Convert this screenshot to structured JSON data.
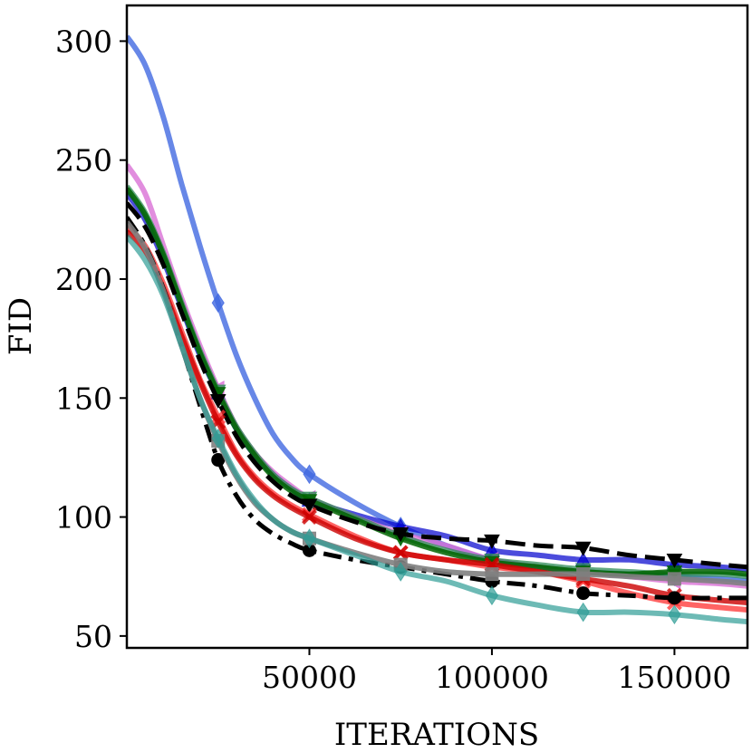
{
  "chart_data": {
    "type": "line",
    "xlabel": "ITERATIONS",
    "ylabel": "FID",
    "xlim": [
      0,
      170000
    ],
    "ylim": [
      45,
      315
    ],
    "x_ticks": [
      50000,
      100000,
      150000
    ],
    "x_tick_labels": [
      "50000",
      "100000",
      "150000"
    ],
    "y_ticks": [
      50,
      100,
      150,
      200,
      250,
      300
    ],
    "y_tick_labels": [
      "50",
      "100",
      "150",
      "200",
      "250",
      "300"
    ],
    "grid": false,
    "legend": "none",
    "x": [
      0,
      5000,
      10000,
      15000,
      20000,
      25000,
      30000,
      35000,
      40000,
      45000,
      50000,
      62500,
      75000,
      87500,
      100000,
      112500,
      125000,
      137500,
      150000,
      162500,
      170000
    ],
    "marker_x": [
      25000,
      50000,
      75000,
      100000,
      125000,
      150000
    ],
    "series": [
      {
        "color": "#4169e1",
        "marker": "diamond",
        "style": "solid",
        "alpha": 0.8,
        "values": [
          302,
          290,
          268,
          240,
          214,
          190,
          168,
          150,
          135,
          125,
          118,
          106,
          96,
          88,
          82,
          79,
          77,
          76,
          75,
          74,
          73
        ]
      },
      {
        "color": "#0000cd",
        "marker": "triangle-up",
        "style": "solid",
        "alpha": 0.7,
        "values": [
          236,
          225,
          208,
          188,
          168,
          152,
          137,
          126,
          118,
          112,
          107,
          101,
          96,
          92,
          86,
          84,
          82,
          82,
          80,
          79,
          78
        ]
      },
      {
        "color": "#da70d6",
        "marker": "triangle-left",
        "style": "solid",
        "alpha": 0.8,
        "values": [
          248,
          236,
          214,
          192,
          172,
          154,
          138,
          127,
          119,
          113,
          108,
          100,
          93,
          88,
          82,
          79,
          77,
          75,
          73,
          72,
          71
        ]
      },
      {
        "color": "#2e8b57",
        "marker": "triangle-down",
        "style": "solid",
        "alpha": 0.75,
        "values": [
          239,
          228,
          211,
          190,
          170,
          153,
          138,
          127,
          118,
          112,
          108,
          100,
          92,
          86,
          82,
          80,
          78,
          77,
          76,
          76,
          75
        ]
      },
      {
        "color": "#006400",
        "marker": "triangle-down",
        "style": "solid",
        "alpha": 0.85,
        "values": [
          238,
          227,
          210,
          189,
          169,
          152,
          137,
          126,
          117,
          111,
          107,
          99,
          91,
          85,
          81,
          79,
          77,
          76,
          77,
          77,
          76
        ]
      },
      {
        "color": "#000000",
        "marker": "triangle-down",
        "style": "dashed",
        "alpha": 1.0,
        "values": [
          232,
          222,
          206,
          186,
          166,
          149,
          134,
          123,
          115,
          109,
          105,
          98,
          93,
          91,
          90,
          88,
          87,
          84,
          82,
          80,
          79
        ]
      },
      {
        "color": "#ff3030",
        "marker": "x",
        "style": "solid",
        "alpha": 0.75,
        "values": [
          222,
          214,
          198,
          178,
          158,
          142,
          127,
          117,
          110,
          105,
          101,
          92,
          85,
          82,
          79,
          77,
          73,
          68,
          64,
          62,
          61
        ]
      },
      {
        "color": "#cc0000",
        "marker": "x",
        "style": "solid",
        "alpha": 0.8,
        "values": [
          220,
          212,
          196,
          176,
          157,
          140,
          126,
          116,
          109,
          104,
          100,
          91,
          85,
          82,
          80,
          77,
          74,
          71,
          67,
          65,
          64
        ]
      },
      {
        "color": "#000000",
        "marker": "circle",
        "style": "dashdot",
        "alpha": 1.0,
        "values": [
          226,
          214,
          196,
          172,
          147,
          124,
          109,
          99,
          93,
          89,
          86,
          82,
          79,
          76,
          73,
          71,
          68,
          67,
          66,
          66,
          66
        ]
      },
      {
        "color": "#808080",
        "marker": "square",
        "style": "solid",
        "alpha": 0.9,
        "values": [
          224,
          213,
          195,
          172,
          150,
          132,
          117,
          106,
          99,
          94,
          91,
          85,
          80,
          77,
          76,
          76,
          76,
          75,
          74,
          73,
          72
        ]
      },
      {
        "color": "#2f9c96",
        "marker": "diamond",
        "style": "solid",
        "alpha": 0.7,
        "values": [
          218,
          208,
          193,
          172,
          150,
          133,
          118,
          107,
          99,
          94,
          91,
          84,
          77,
          73,
          67,
          63,
          60,
          60,
          59,
          57,
          56
        ]
      }
    ]
  }
}
